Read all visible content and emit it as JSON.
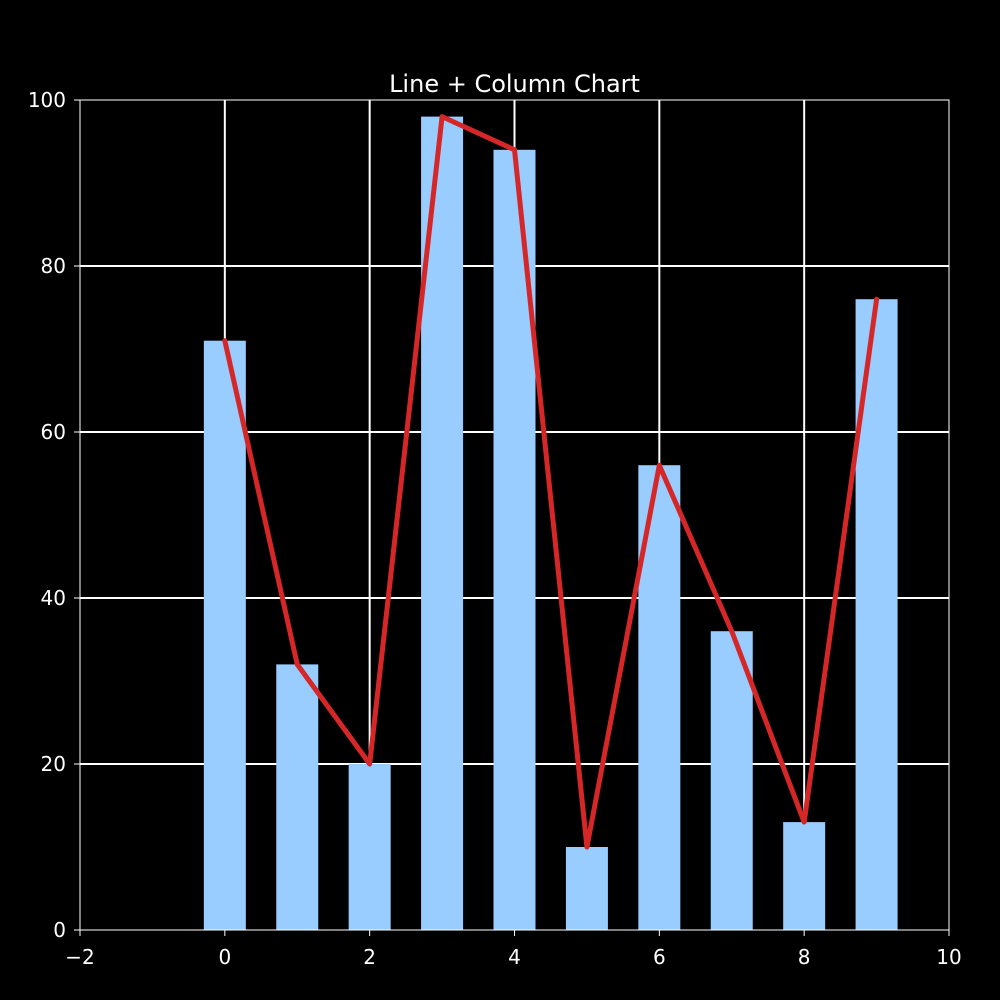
{
  "chart_data": {
    "type": "bar",
    "combo": "bar+line",
    "title": "Line + Column Chart",
    "xlabel": "",
    "ylabel": "",
    "x": [
      0,
      1,
      2,
      3,
      4,
      5,
      6,
      7,
      8,
      9
    ],
    "bar_values": [
      71,
      32,
      20,
      98,
      94,
      10,
      56,
      36,
      13,
      76
    ],
    "line_values": [
      71,
      32,
      20,
      98,
      94,
      10,
      56,
      36,
      13,
      76
    ],
    "xlim": [
      -2,
      10
    ],
    "ylim": [
      0,
      100
    ],
    "x_ticks": [
      -2,
      0,
      2,
      4,
      6,
      8,
      10
    ],
    "x_tick_labels": [
      "−2",
      "0",
      "2",
      "4",
      "6",
      "8",
      "10"
    ],
    "y_ticks": [
      0,
      20,
      40,
      60,
      80,
      100
    ],
    "y_tick_labels": [
      "0",
      "20",
      "40",
      "60",
      "80",
      "100"
    ],
    "grid": true,
    "legend": "none",
    "colors": {
      "background": "#000000",
      "bar": "#99ccff",
      "line": "#d62728",
      "grid": "#ffffff",
      "axis": "#ffffff",
      "text": "#ffffff"
    }
  }
}
